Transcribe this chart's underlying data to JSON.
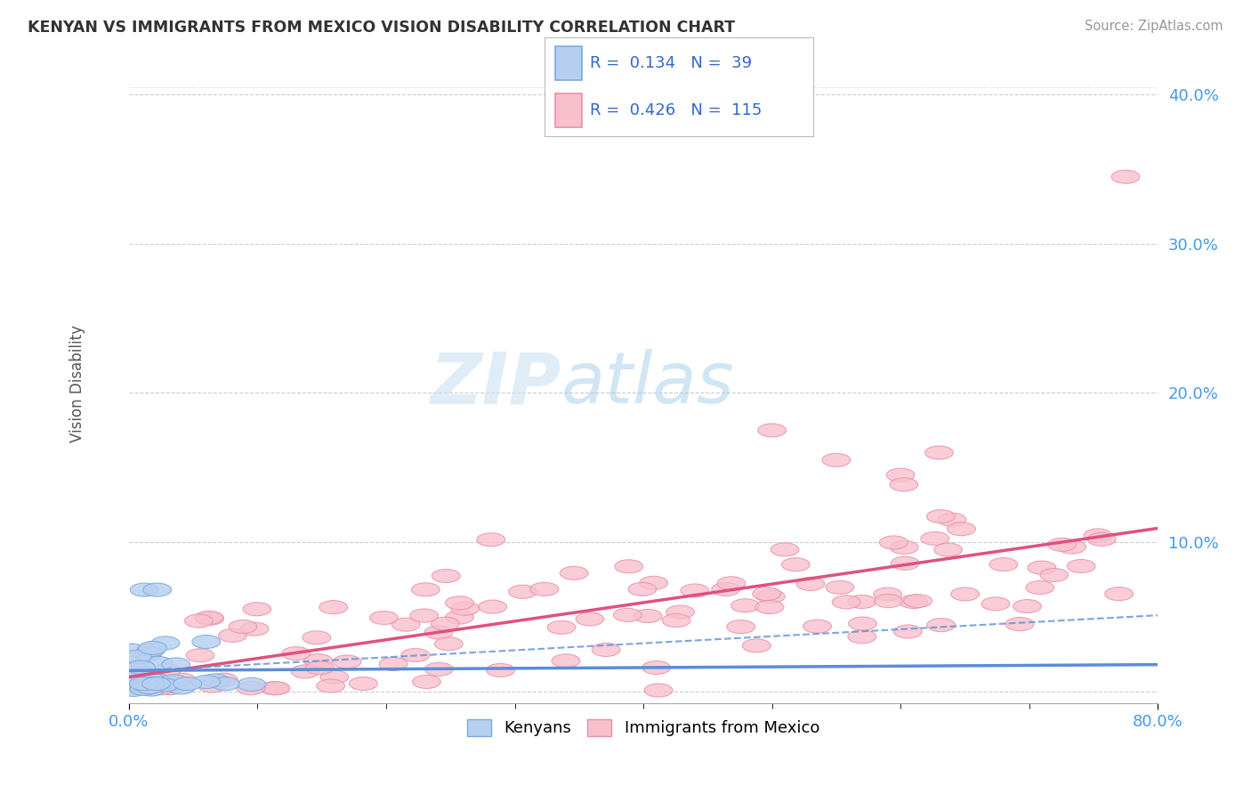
{
  "title": "KENYAN VS IMMIGRANTS FROM MEXICO VISION DISABILITY CORRELATION CHART",
  "source": "Source: ZipAtlas.com",
  "ylabel": "Vision Disability",
  "legend_entries": [
    {
      "label": "Kenyans",
      "R": 0.134,
      "N": 39,
      "face_color": "#b8d0f0",
      "edge_color": "#7aaade",
      "line_color": "#5b8dd9"
    },
    {
      "label": "Immigrants from Mexico",
      "R": 0.426,
      "N": 115,
      "face_color": "#f8c0cc",
      "edge_color": "#e890a8",
      "line_color": "#e05080"
    }
  ],
  "xlim": [
    0.0,
    0.8
  ],
  "ylim": [
    -0.008,
    0.42
  ],
  "ytick_positions": [
    0.0,
    0.1,
    0.2,
    0.3,
    0.4
  ],
  "ytick_labels": [
    "",
    "10.0%",
    "20.0%",
    "30.0%",
    "40.0%"
  ],
  "grid_color": "#cccccc",
  "background_color": "#ffffff"
}
